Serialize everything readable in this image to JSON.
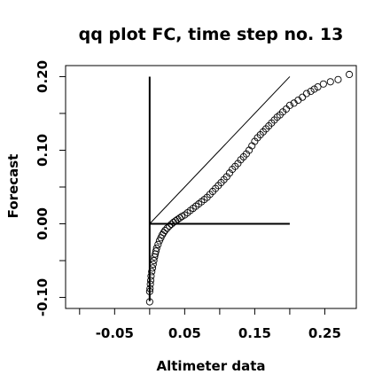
{
  "chart_data": {
    "type": "scatter",
    "title": "qq plot FC, time step no. 13",
    "xlabel": "Altimeter data",
    "ylabel": "Forecast",
    "xlim": [
      -0.12,
      0.295
    ],
    "ylim": [
      -0.115,
      0.215
    ],
    "x_ticks": [
      {
        "value": -0.05,
        "label": "-0.05"
      },
      {
        "value": 0.05,
        "label": "0.05"
      },
      {
        "value": 0.15,
        "label": "0.15"
      },
      {
        "value": 0.25,
        "label": "0.25"
      }
    ],
    "x_minor_ticks": [
      -0.1,
      0.0,
      0.1,
      0.2
    ],
    "y_ticks": [
      {
        "value": -0.1,
        "label": "-0.10"
      },
      {
        "value": 0.0,
        "label": "0.00"
      },
      {
        "value": 0.1,
        "label": "0.10"
      },
      {
        "value": 0.2,
        "label": "0.20"
      }
    ],
    "y_minor_ticks": [
      -0.05,
      0.05,
      0.15
    ],
    "reference_lines": [
      {
        "kind": "identity",
        "x": [
          0.0,
          0.2
        ],
        "y": [
          0.0,
          0.2
        ],
        "width": "thin"
      },
      {
        "kind": "vertical",
        "x": [
          0.0,
          0.0
        ],
        "y": [
          -0.105,
          0.2
        ],
        "width": "thick"
      },
      {
        "kind": "horizontal",
        "x": [
          0.0,
          0.2
        ],
        "y": [
          0.0,
          0.0
        ],
        "width": "thick"
      }
    ],
    "qq_points": {
      "x": [
        0.0,
        0.0,
        0.0005,
        0.001,
        0.0015,
        0.002,
        0.003,
        0.004,
        0.005,
        0.006,
        0.007,
        0.008,
        0.009,
        0.01,
        0.012,
        0.014,
        0.016,
        0.018,
        0.02,
        0.022,
        0.025,
        0.028,
        0.031,
        0.034,
        0.037,
        0.04,
        0.043,
        0.046,
        0.05,
        0.054,
        0.058,
        0.062,
        0.066,
        0.07,
        0.074,
        0.078,
        0.082,
        0.086,
        0.09,
        0.094,
        0.098,
        0.102,
        0.106,
        0.11,
        0.114,
        0.118,
        0.122,
        0.126,
        0.13,
        0.134,
        0.138,
        0.142,
        0.146,
        0.15,
        0.154,
        0.158,
        0.162,
        0.166,
        0.17,
        0.174,
        0.178,
        0.182,
        0.186,
        0.19,
        0.195,
        0.2,
        0.206,
        0.212,
        0.218,
        0.224,
        0.23,
        0.235,
        0.24,
        0.248,
        0.258,
        0.269,
        0.285
      ],
      "y": [
        -0.106,
        -0.092,
        -0.088,
        -0.082,
        -0.077,
        -0.071,
        -0.065,
        -0.06,
        -0.055,
        -0.05,
        -0.045,
        -0.041,
        -0.037,
        -0.033,
        -0.028,
        -0.023,
        -0.019,
        -0.015,
        -0.012,
        -0.009,
        -0.006,
        -0.003,
        -0.0005,
        0.002,
        0.004,
        0.006,
        0.008,
        0.01,
        0.012,
        0.015,
        0.018,
        0.021,
        0.024,
        0.027,
        0.03,
        0.033,
        0.036,
        0.04,
        0.044,
        0.048,
        0.052,
        0.056,
        0.06,
        0.064,
        0.069,
        0.074,
        0.078,
        0.082,
        0.087,
        0.091,
        0.095,
        0.1,
        0.106,
        0.112,
        0.117,
        0.121,
        0.125,
        0.129,
        0.133,
        0.137,
        0.141,
        0.145,
        0.148,
        0.152,
        0.156,
        0.161,
        0.164,
        0.168,
        0.172,
        0.177,
        0.18,
        0.183,
        0.186,
        0.19,
        0.193,
        0.196,
        0.203
      ]
    },
    "grid": false,
    "legend": "none"
  }
}
